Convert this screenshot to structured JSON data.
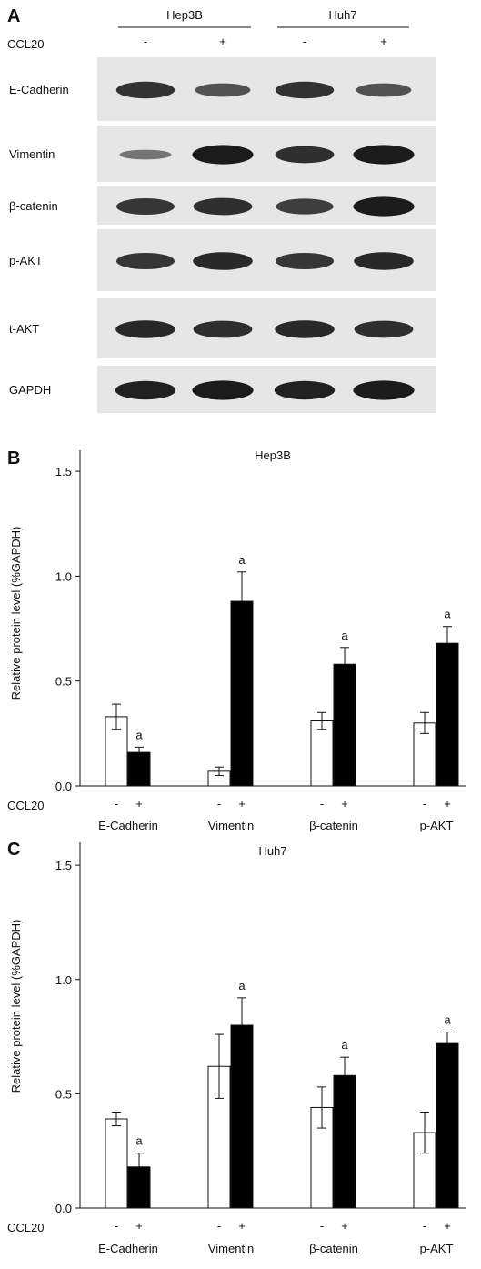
{
  "panels": {
    "a": "A",
    "b": "B",
    "c": "C"
  },
  "blot": {
    "cell_lines": [
      "Hep3B",
      "Huh7"
    ],
    "treatment_label": "CCL20",
    "lane_signs": [
      "-",
      "+",
      "-",
      "+"
    ],
    "rows": [
      {
        "label": "E-Cadherin",
        "intensity": [
          0.78,
          0.55,
          0.78,
          0.55
        ]
      },
      {
        "label": "Vimentin",
        "intensity": [
          0.3,
          0.95,
          0.8,
          0.95
        ]
      },
      {
        "label": "β-catenin",
        "intensity": [
          0.75,
          0.8,
          0.7,
          0.95
        ]
      },
      {
        "label": "p-AKT",
        "intensity": [
          0.75,
          0.85,
          0.75,
          0.85
        ]
      },
      {
        "label": "t-AKT",
        "intensity": [
          0.85,
          0.8,
          0.85,
          0.8
        ]
      },
      {
        "label": "GAPDH",
        "intensity": [
          0.9,
          0.95,
          0.9,
          0.95
        ]
      }
    ],
    "colors": {
      "background": "#e6e6e6",
      "band": "#141414"
    }
  },
  "chart_data": [
    {
      "type": "bar",
      "title": "Hep3B",
      "xlabel": "",
      "ylabel": "Relative protein level (%GAPDH)",
      "ylim": [
        0,
        1.6
      ],
      "yticks": [
        "0.0",
        "0.5",
        "1.0",
        "1.5"
      ],
      "categories": [
        "E-Cadherin",
        "Vimentin",
        "β-catenin",
        "p-AKT"
      ],
      "group_label": "CCL20",
      "signs": [
        "-",
        "+"
      ],
      "series": [
        {
          "values": [
            0.33,
            0.07,
            0.31,
            0.3
          ],
          "errors": [
            0.06,
            0.02,
            0.04,
            0.05
          ],
          "color": "#ffffff"
        },
        {
          "values": [
            0.16,
            0.88,
            0.58,
            0.68
          ],
          "errors": [
            0.025,
            0.14,
            0.08,
            0.08
          ],
          "color": "#000000"
        }
      ],
      "annotations": [
        {
          "category": "E-Cadherin",
          "text": "a"
        },
        {
          "category": "Vimentin",
          "text": "a"
        },
        {
          "category": "β-catenin",
          "text": "a"
        },
        {
          "category": "p-AKT",
          "text": "a"
        }
      ]
    },
    {
      "type": "bar",
      "title": "Huh7",
      "xlabel": "",
      "ylabel": "Relative protein level (%GAPDH)",
      "ylim": [
        0,
        1.6
      ],
      "yticks": [
        "0.0",
        "0.5",
        "1.0",
        "1.5"
      ],
      "categories": [
        "E-Cadherin",
        "Vimentin",
        "β-catenin",
        "p-AKT"
      ],
      "group_label": "CCL20",
      "signs": [
        "-",
        "+"
      ],
      "series": [
        {
          "values": [
            0.39,
            0.62,
            0.44,
            0.33
          ],
          "errors": [
            0.03,
            0.14,
            0.09,
            0.09
          ],
          "color": "#ffffff"
        },
        {
          "values": [
            0.18,
            0.8,
            0.58,
            0.72
          ],
          "errors": [
            0.06,
            0.12,
            0.08,
            0.05
          ],
          "color": "#000000"
        }
      ],
      "annotations": [
        {
          "category": "E-Cadherin",
          "text": "a"
        },
        {
          "category": "Vimentin",
          "text": "a"
        },
        {
          "category": "β-catenin",
          "text": "a"
        },
        {
          "category": "p-AKT",
          "text": "a"
        }
      ]
    }
  ]
}
